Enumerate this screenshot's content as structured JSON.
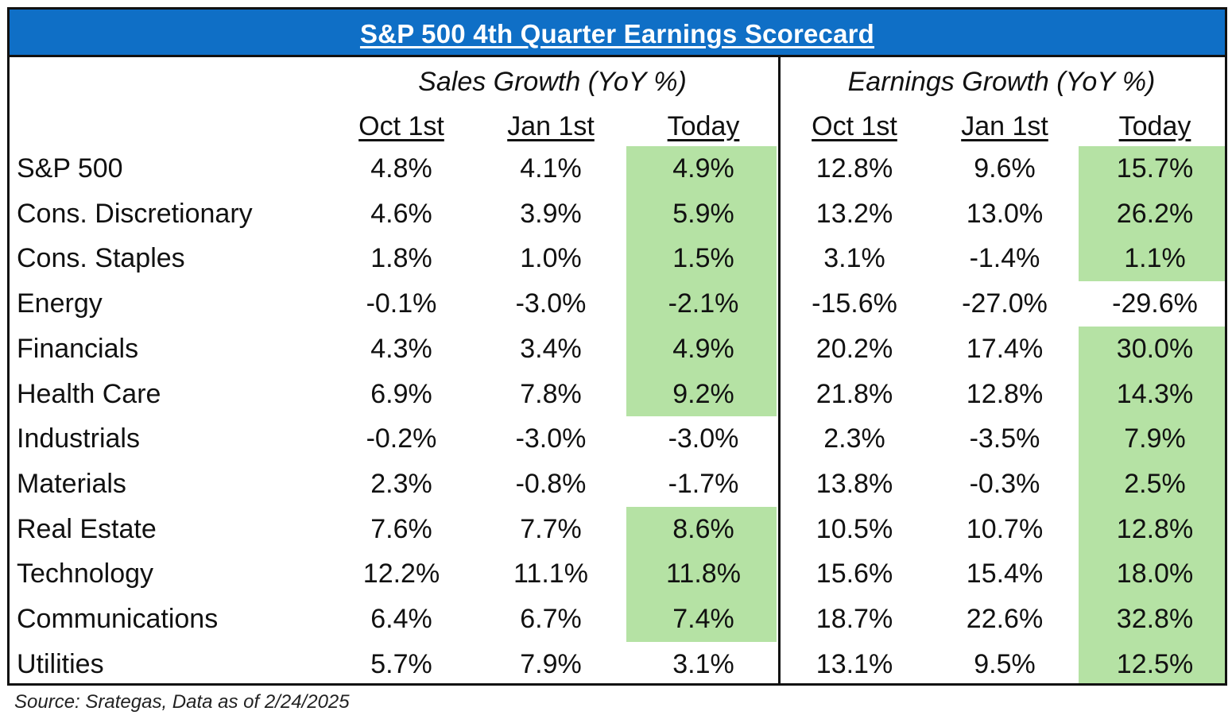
{
  "chart_data": {
    "type": "table",
    "title": "S&P 500 4th Quarter Earnings Scorecard",
    "groups": [
      {
        "label": "Sales Growth (YoY %)",
        "columns": [
          "Oct 1st",
          "Jan 1st",
          "Today"
        ]
      },
      {
        "label": "Earnings Growth (YoY %)",
        "columns": [
          "Oct 1st",
          "Jan 1st",
          "Today"
        ]
      }
    ],
    "rows": [
      {
        "label": "S&P 500",
        "values": [
          "4.8%",
          "4.1%",
          "4.9%",
          "12.8%",
          "9.6%",
          "15.7%"
        ],
        "highlight": [
          false,
          false,
          true,
          false,
          false,
          true
        ]
      },
      {
        "label": "Cons. Discretionary",
        "values": [
          "4.6%",
          "3.9%",
          "5.9%",
          "13.2%",
          "13.0%",
          "26.2%"
        ],
        "highlight": [
          false,
          false,
          true,
          false,
          false,
          true
        ]
      },
      {
        "label": "Cons. Staples",
        "values": [
          "1.8%",
          "1.0%",
          "1.5%",
          "3.1%",
          "-1.4%",
          "1.1%"
        ],
        "highlight": [
          false,
          false,
          true,
          false,
          false,
          true
        ]
      },
      {
        "label": "Energy",
        "values": [
          "-0.1%",
          "-3.0%",
          "-2.1%",
          "-15.6%",
          "-27.0%",
          "-29.6%"
        ],
        "highlight": [
          false,
          false,
          true,
          false,
          false,
          false
        ]
      },
      {
        "label": "Financials",
        "values": [
          "4.3%",
          "3.4%",
          "4.9%",
          "20.2%",
          "17.4%",
          "30.0%"
        ],
        "highlight": [
          false,
          false,
          true,
          false,
          false,
          true
        ]
      },
      {
        "label": "Health Care",
        "values": [
          "6.9%",
          "7.8%",
          "9.2%",
          "21.8%",
          "12.8%",
          "14.3%"
        ],
        "highlight": [
          false,
          false,
          true,
          false,
          false,
          true
        ]
      },
      {
        "label": "Industrials",
        "values": [
          "-0.2%",
          "-3.0%",
          "-3.0%",
          "2.3%",
          "-3.5%",
          "7.9%"
        ],
        "highlight": [
          false,
          false,
          false,
          false,
          false,
          true
        ]
      },
      {
        "label": "Materials",
        "values": [
          "2.3%",
          "-0.8%",
          "-1.7%",
          "13.8%",
          "-0.3%",
          "2.5%"
        ],
        "highlight": [
          false,
          false,
          false,
          false,
          false,
          true
        ]
      },
      {
        "label": "Real Estate",
        "values": [
          "7.6%",
          "7.7%",
          "8.6%",
          "10.5%",
          "10.7%",
          "12.8%"
        ],
        "highlight": [
          false,
          false,
          true,
          false,
          false,
          true
        ]
      },
      {
        "label": "Technology",
        "values": [
          "12.2%",
          "11.1%",
          "11.8%",
          "15.6%",
          "15.4%",
          "18.0%"
        ],
        "highlight": [
          false,
          false,
          true,
          false,
          false,
          true
        ]
      },
      {
        "label": "Communications",
        "values": [
          "6.4%",
          "6.7%",
          "7.4%",
          "18.7%",
          "22.6%",
          "32.8%"
        ],
        "highlight": [
          false,
          false,
          true,
          false,
          false,
          true
        ]
      },
      {
        "label": "Utilities",
        "values": [
          "5.7%",
          "7.9%",
          "3.1%",
          "13.1%",
          "9.5%",
          "12.5%"
        ],
        "highlight": [
          false,
          false,
          false,
          false,
          false,
          true
        ]
      }
    ],
    "source": "Source: Srategas, Data as of 2/24/2025"
  },
  "colors": {
    "title_bg": "#0f6fc6",
    "title_text": "#ffffff",
    "highlight": "#b5e2a4",
    "border": "#111111"
  }
}
